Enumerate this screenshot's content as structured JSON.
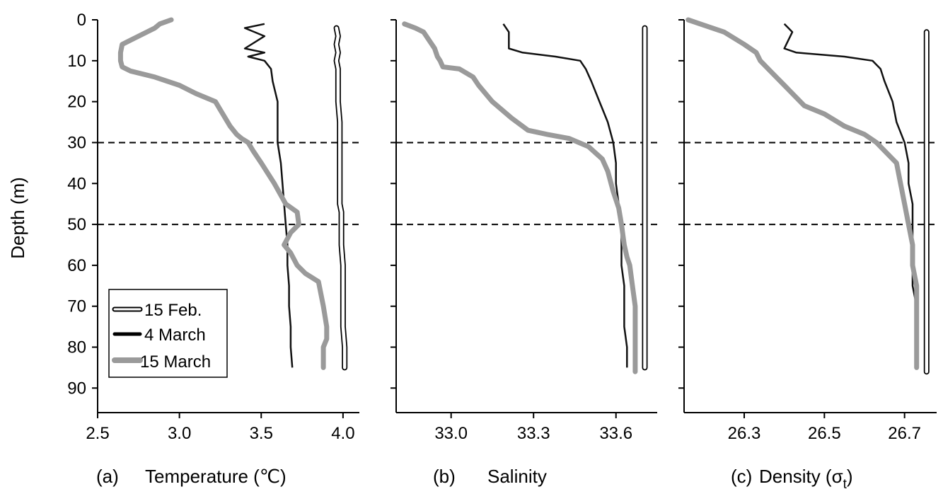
{
  "y_axis_label": "Depth (m)",
  "legend": {
    "items": [
      {
        "label": "15 Feb.",
        "style": "double"
      },
      {
        "label": "4 March",
        "style": "black"
      },
      {
        "label": "15 March",
        "style": "gray"
      }
    ]
  },
  "colors": {
    "feb15": "#000000",
    "mar4": "#111111",
    "mar15": "#9a9a9a",
    "reference_lines": "#000000"
  },
  "chart_data": [
    {
      "type": "line",
      "panel": "(a)",
      "xlabel": "Temperature (℃)",
      "ylabel": "Depth (m)",
      "xlim": [
        2.5,
        4.1
      ],
      "ylim": [
        0,
        96
      ],
      "y_inverted": true,
      "xticks": [
        "2.5",
        "3.0",
        "3.5",
        "4.0"
      ],
      "xtick_values": [
        2.5,
        3.0,
        3.5,
        4.0
      ],
      "yticks": [
        "0",
        "10",
        "20",
        "30",
        "40",
        "50",
        "60",
        "70",
        "80",
        "90"
      ],
      "ytick_values": [
        0,
        10,
        20,
        30,
        40,
        50,
        60,
        70,
        80,
        90
      ],
      "reference_depths": [
        30,
        50
      ],
      "legend_position": "bottom-left",
      "series": [
        {
          "name": "15 Feb.",
          "points": [
            [
              3.96,
              2
            ],
            [
              3.97,
              4
            ],
            [
              3.96,
              6
            ],
            [
              3.97,
              8
            ],
            [
              3.96,
              10
            ],
            [
              3.97,
              12
            ],
            [
              3.97,
              15
            ],
            [
              3.97,
              20
            ],
            [
              3.98,
              25
            ],
            [
              3.98,
              30
            ],
            [
              3.98,
              35
            ],
            [
              3.98,
              40
            ],
            [
              3.98,
              45
            ],
            [
              3.99,
              47
            ],
            [
              3.99,
              50
            ],
            [
              3.99,
              55
            ],
            [
              4.0,
              60
            ],
            [
              4.0,
              65
            ],
            [
              4.0,
              70
            ],
            [
              4.0,
              75
            ],
            [
              4.01,
              80
            ],
            [
              4.01,
              85
            ]
          ]
        },
        {
          "name": "4 March",
          "points": [
            [
              3.52,
              1
            ],
            [
              3.4,
              2
            ],
            [
              3.52,
              4
            ],
            [
              3.4,
              7
            ],
            [
              3.52,
              8
            ],
            [
              3.42,
              9
            ],
            [
              3.52,
              10
            ],
            [
              3.56,
              12
            ],
            [
              3.57,
              15
            ],
            [
              3.6,
              20
            ],
            [
              3.6,
              25
            ],
            [
              3.6,
              30
            ],
            [
              3.62,
              35
            ],
            [
              3.63,
              40
            ],
            [
              3.64,
              45
            ],
            [
              3.65,
              50
            ],
            [
              3.66,
              55
            ],
            [
              3.66,
              60
            ],
            [
              3.67,
              65
            ],
            [
              3.67,
              70
            ],
            [
              3.68,
              75
            ],
            [
              3.68,
              80
            ],
            [
              3.69,
              85
            ]
          ]
        },
        {
          "name": "15 March",
          "points": [
            [
              2.95,
              0
            ],
            [
              2.88,
              1
            ],
            [
              2.85,
              2
            ],
            [
              2.7,
              5
            ],
            [
              2.65,
              6
            ],
            [
              2.64,
              8
            ],
            [
              2.64,
              10
            ],
            [
              2.65,
              11.5
            ],
            [
              2.7,
              12.5
            ],
            [
              2.85,
              14
            ],
            [
              3.0,
              16
            ],
            [
              3.1,
              18
            ],
            [
              3.22,
              20
            ],
            [
              3.25,
              22
            ],
            [
              3.28,
              24
            ],
            [
              3.31,
              26
            ],
            [
              3.35,
              28
            ],
            [
              3.38,
              29
            ],
            [
              3.42,
              30
            ],
            [
              3.45,
              32
            ],
            [
              3.5,
              35
            ],
            [
              3.58,
              40
            ],
            [
              3.65,
              45
            ],
            [
              3.72,
              47
            ],
            [
              3.73,
              50
            ],
            [
              3.68,
              52
            ],
            [
              3.64,
              55
            ],
            [
              3.68,
              57
            ],
            [
              3.72,
              60
            ],
            [
              3.77,
              62
            ],
            [
              3.85,
              64
            ],
            [
              3.88,
              70
            ],
            [
              3.9,
              75
            ],
            [
              3.9,
              78
            ],
            [
              3.88,
              80
            ],
            [
              3.88,
              85
            ]
          ]
        }
      ]
    },
    {
      "type": "line",
      "panel": "(b)",
      "xlabel": "Salinity",
      "xlim": [
        32.8,
        33.75
      ],
      "ylim": [
        0,
        96
      ],
      "y_inverted": true,
      "xticks": [
        "33.0",
        "33.3",
        "33.6"
      ],
      "xtick_values": [
        33.0,
        33.3,
        33.6
      ],
      "reference_depths": [
        30,
        50
      ],
      "series": [
        {
          "name": "15 Feb.",
          "points": [
            [
              33.705,
              2
            ],
            [
              33.705,
              10
            ],
            [
              33.705,
              20
            ],
            [
              33.705,
              30
            ],
            [
              33.705,
              40
            ],
            [
              33.705,
              50
            ],
            [
              33.705,
              60
            ],
            [
              33.705,
              70
            ],
            [
              33.705,
              80
            ],
            [
              33.705,
              85
            ]
          ]
        },
        {
          "name": "4 March",
          "points": [
            [
              33.19,
              1
            ],
            [
              33.21,
              3
            ],
            [
              33.21,
              5
            ],
            [
              33.21,
              7
            ],
            [
              33.26,
              8
            ],
            [
              33.38,
              9
            ],
            [
              33.47,
              10
            ],
            [
              33.49,
              12
            ],
            [
              33.51,
              15
            ],
            [
              33.54,
              20
            ],
            [
              33.57,
              25
            ],
            [
              33.59,
              30
            ],
            [
              33.6,
              35
            ],
            [
              33.6,
              40
            ],
            [
              33.61,
              45
            ],
            [
              33.62,
              50
            ],
            [
              33.62,
              55
            ],
            [
              33.62,
              60
            ],
            [
              33.63,
              65
            ],
            [
              33.63,
              70
            ],
            [
              33.63,
              75
            ],
            [
              33.64,
              80
            ],
            [
              33.64,
              85
            ]
          ]
        },
        {
          "name": "15 March",
          "points": [
            [
              32.83,
              1
            ],
            [
              32.87,
              2
            ],
            [
              32.9,
              3
            ],
            [
              32.92,
              5
            ],
            [
              32.94,
              7
            ],
            [
              32.95,
              9
            ],
            [
              32.96,
              10
            ],
            [
              32.97,
              11.5
            ],
            [
              33.03,
              12
            ],
            [
              33.08,
              14
            ],
            [
              33.1,
              16
            ],
            [
              33.15,
              20
            ],
            [
              33.22,
              24
            ],
            [
              33.28,
              27
            ],
            [
              33.35,
              28
            ],
            [
              33.43,
              29
            ],
            [
              33.5,
              31
            ],
            [
              33.55,
              34
            ],
            [
              33.57,
              37
            ],
            [
              33.59,
              42
            ],
            [
              33.61,
              46
            ],
            [
              33.62,
              50
            ],
            [
              33.63,
              55
            ],
            [
              33.64,
              58
            ],
            [
              33.65,
              60
            ],
            [
              33.66,
              65
            ],
            [
              33.67,
              70
            ],
            [
              33.67,
              75
            ],
            [
              33.67,
              80
            ],
            [
              33.67,
              86
            ]
          ]
        }
      ]
    },
    {
      "type": "line",
      "panel": "(c)",
      "xlabel": "Density (σt)",
      "xlim": [
        26.15,
        26.78
      ],
      "ylim": [
        0,
        96
      ],
      "y_inverted": true,
      "xticks": [
        "26.3",
        "26.5",
        "26.7"
      ],
      "xtick_values": [
        26.3,
        26.5,
        26.7
      ],
      "reference_depths": [
        30,
        50
      ],
      "series": [
        {
          "name": "15 Feb.",
          "points": [
            [
              26.755,
              3
            ],
            [
              26.755,
              10
            ],
            [
              26.755,
              20
            ],
            [
              26.755,
              30
            ],
            [
              26.755,
              40
            ],
            [
              26.755,
              50
            ],
            [
              26.755,
              60
            ],
            [
              26.755,
              70
            ],
            [
              26.755,
              80
            ],
            [
              26.755,
              86
            ]
          ]
        },
        {
          "name": "4 March",
          "points": [
            [
              26.4,
              1
            ],
            [
              26.42,
              3
            ],
            [
              26.41,
              5
            ],
            [
              26.4,
              7
            ],
            [
              26.43,
              8
            ],
            [
              26.55,
              9
            ],
            [
              26.62,
              10
            ],
            [
              26.64,
              12
            ],
            [
              26.65,
              15
            ],
            [
              26.67,
              20
            ],
            [
              26.68,
              25
            ],
            [
              26.7,
              30
            ],
            [
              26.71,
              35
            ],
            [
              26.71,
              40
            ],
            [
              26.72,
              45
            ],
            [
              26.72,
              50
            ],
            [
              26.72,
              55
            ],
            [
              26.72,
              60
            ],
            [
              26.72,
              65
            ],
            [
              26.73,
              70
            ],
            [
              26.73,
              75
            ],
            [
              26.73,
              80
            ],
            [
              26.73,
              85
            ]
          ]
        },
        {
          "name": "15 March",
          "points": [
            [
              26.16,
              0
            ],
            [
              26.19,
              1
            ],
            [
              26.22,
              2
            ],
            [
              26.25,
              3
            ],
            [
              26.3,
              6
            ],
            [
              26.33,
              8
            ],
            [
              26.34,
              10
            ],
            [
              26.36,
              12
            ],
            [
              26.38,
              14
            ],
            [
              26.4,
              16
            ],
            [
              26.42,
              18
            ],
            [
              26.45,
              21
            ],
            [
              26.5,
              23
            ],
            [
              26.55,
              26
            ],
            [
              26.6,
              28
            ],
            [
              26.63,
              30
            ],
            [
              26.66,
              33
            ],
            [
              26.68,
              35
            ],
            [
              26.69,
              40
            ],
            [
              26.7,
              45
            ],
            [
              26.71,
              50
            ],
            [
              26.72,
              55
            ],
            [
              26.72,
              60
            ],
            [
              26.73,
              65
            ],
            [
              26.73,
              70
            ],
            [
              26.73,
              75
            ],
            [
              26.73,
              80
            ],
            [
              26.73,
              85
            ]
          ]
        }
      ]
    }
  ],
  "panel_labels": [
    "(a)",
    "(b)",
    "(c)"
  ]
}
